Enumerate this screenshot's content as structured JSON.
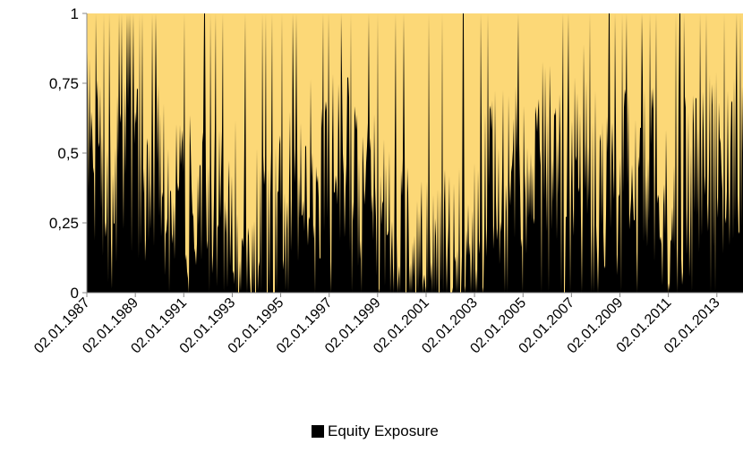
{
  "chart_data": {
    "type": "area",
    "title": "",
    "xlabel": "",
    "ylabel": "",
    "ylim": [
      0,
      1
    ],
    "y_ticks": [
      "0",
      "0,25",
      "0,5",
      "0,75",
      "1"
    ],
    "x_ticks": [
      "02.01.1987",
      "02.01.1989",
      "02.01.1991",
      "02.01.1993",
      "02.01.1995",
      "02.01.1997",
      "02.01.1999",
      "02.01.2001",
      "02.01.2003",
      "02.01.2005",
      "02.01.2007",
      "02.01.2009",
      "02.01.2011",
      "02.01.2013"
    ],
    "x_range": [
      "1987-01-02",
      "2014-01-31"
    ],
    "background_color": "#fcd877",
    "series_color": "#000000",
    "grid": false,
    "legend_position": "bottom",
    "series": [
      {
        "name": "Equity Exposure",
        "x": [
          "1987-01-02",
          "1987-07-02",
          "1988-01-04",
          "1988-07-01",
          "1989-01-02",
          "1989-07-03",
          "1990-01-02",
          "1990-07-02",
          "1991-01-02",
          "1991-07-01",
          "1992-01-02",
          "1992-07-01",
          "1993-01-04",
          "1993-07-01",
          "1994-01-03",
          "1994-07-01",
          "1995-01-02",
          "1995-07-03",
          "1996-01-02",
          "1996-07-01",
          "1997-01-02",
          "1997-07-01",
          "1998-01-02",
          "1998-07-01",
          "1999-01-04",
          "1999-07-01",
          "2000-01-03",
          "2000-07-03",
          "2001-01-02",
          "2001-07-02",
          "2002-01-02",
          "2002-07-01",
          "2003-01-02",
          "2003-07-01",
          "2004-01-02",
          "2004-07-01",
          "2005-01-03",
          "2005-07-01",
          "2006-01-02",
          "2006-07-03",
          "2007-01-02",
          "2007-07-02",
          "2008-01-02",
          "2008-07-01",
          "2009-01-02",
          "2009-07-01",
          "2010-01-04",
          "2010-07-01",
          "2011-01-03",
          "2011-07-01",
          "2012-01-02",
          "2012-07-02",
          "2013-01-02",
          "2013-07-01",
          "2014-01-02"
        ],
        "values": [
          0.55,
          0.45,
          0.35,
          0.5,
          0.45,
          0.45,
          0.4,
          0.25,
          0.35,
          0.3,
          0.3,
          0.3,
          0.3,
          0.25,
          0.25,
          0.2,
          0.3,
          0.4,
          0.4,
          0.45,
          0.45,
          0.5,
          0.4,
          0.35,
          0.3,
          0.25,
          0.2,
          0.1,
          0.05,
          0.1,
          0.15,
          0.1,
          0.2,
          0.35,
          0.4,
          0.45,
          0.45,
          0.5,
          0.5,
          0.5,
          0.5,
          0.55,
          0.45,
          0.35,
          0.35,
          0.45,
          0.5,
          0.45,
          0.3,
          0.35,
          0.4,
          0.45,
          0.45,
          0.45,
          0.4
        ]
      }
    ]
  }
}
